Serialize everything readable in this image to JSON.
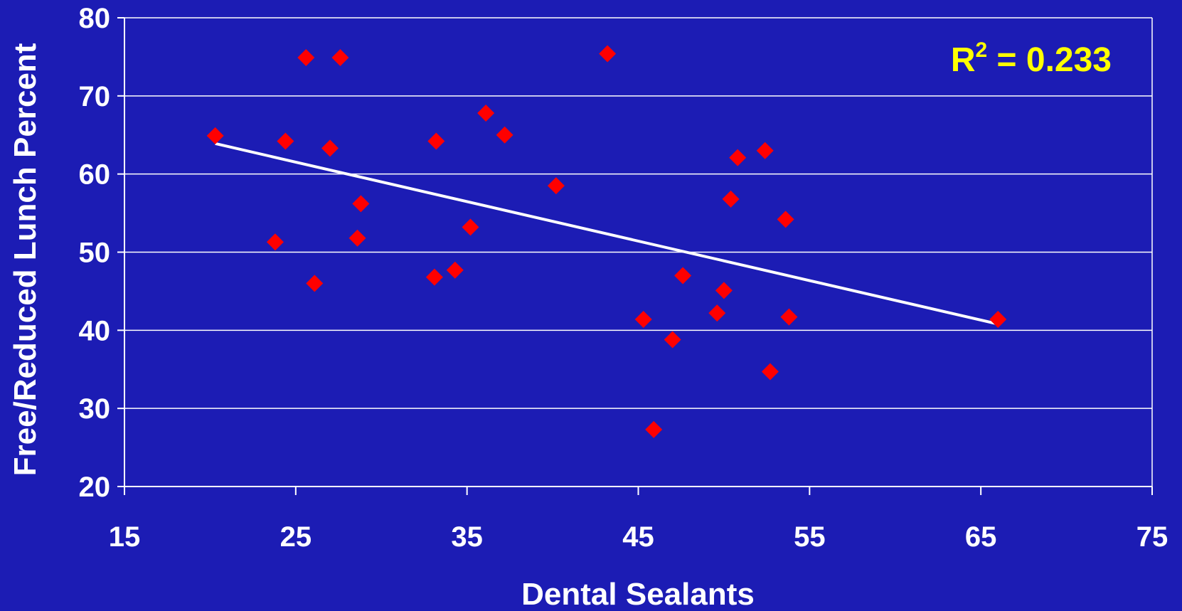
{
  "chart_data": {
    "type": "scatter",
    "xlabel": "Dental Sealants",
    "ylabel": "Free/Reduced Lunch Percent",
    "xlim": [
      15,
      75
    ],
    "ylim": [
      20,
      80
    ],
    "xticks": [
      15,
      25,
      35,
      45,
      55,
      65,
      75
    ],
    "yticks": [
      20,
      30,
      40,
      50,
      60,
      70,
      80
    ],
    "grid": "horizontal",
    "point_color": "#ff0000",
    "trend_color": "#ffffff",
    "background_color": "#1c1cb4",
    "annotation": {
      "r2_label": "R",
      "r2_sup": "2",
      "r2_value": " = 0.233"
    },
    "trendline": {
      "x": [
        20.3,
        66.0
      ],
      "y": [
        63.9,
        40.8
      ]
    },
    "points": [
      {
        "x": 20.3,
        "y": 64.9
      },
      {
        "x": 23.8,
        "y": 51.3
      },
      {
        "x": 24.4,
        "y": 64.2
      },
      {
        "x": 25.6,
        "y": 74.9
      },
      {
        "x": 26.1,
        "y": 46.0
      },
      {
        "x": 27.0,
        "y": 63.3
      },
      {
        "x": 27.6,
        "y": 74.9
      },
      {
        "x": 28.6,
        "y": 51.8
      },
      {
        "x": 28.8,
        "y": 56.2
      },
      {
        "x": 33.1,
        "y": 46.8
      },
      {
        "x": 33.2,
        "y": 64.2
      },
      {
        "x": 34.3,
        "y": 47.7
      },
      {
        "x": 35.2,
        "y": 53.2
      },
      {
        "x": 36.1,
        "y": 67.8
      },
      {
        "x": 37.2,
        "y": 65.0
      },
      {
        "x": 40.2,
        "y": 58.5
      },
      {
        "x": 43.2,
        "y": 75.4
      },
      {
        "x": 45.3,
        "y": 41.4
      },
      {
        "x": 45.9,
        "y": 27.3
      },
      {
        "x": 47.0,
        "y": 38.8
      },
      {
        "x": 47.6,
        "y": 47.0
      },
      {
        "x": 49.6,
        "y": 42.2
      },
      {
        "x": 50.0,
        "y": 45.1
      },
      {
        "x": 50.4,
        "y": 56.8
      },
      {
        "x": 50.8,
        "y": 62.1
      },
      {
        "x": 52.4,
        "y": 63.0
      },
      {
        "x": 52.7,
        "y": 34.7
      },
      {
        "x": 53.6,
        "y": 54.2
      },
      {
        "x": 53.8,
        "y": 41.7
      },
      {
        "x": 66.0,
        "y": 41.4
      }
    ]
  }
}
